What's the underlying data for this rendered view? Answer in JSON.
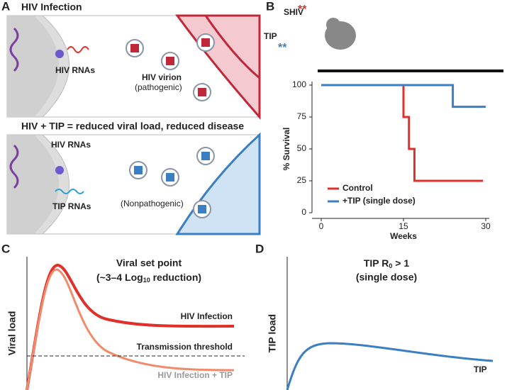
{
  "panels": {
    "a": {
      "label": "A",
      "title_top": "HIV Infection",
      "rnas_top": "HIV RNAs",
      "virion": "HIV virion",
      "pathogenic": "(pathogenic)",
      "title_bottom": "HIV + TIP = reduced viral load, reduced disease",
      "rnas_bottom": "HIV RNAs",
      "tip_rnas": "TIP RNAs",
      "nonpathogenic": "(Nonpathogenic)"
    },
    "b": {
      "label": "B",
      "shiv": "SHIV",
      "shiv_mark": "**",
      "tip": "TIP",
      "tip_mark": "**"
    },
    "c": {
      "label": "C",
      "title1": "Viral set point",
      "title2_pre": "(~3–4 Log",
      "title2_sub": "10",
      "title2_post": " reduction)",
      "ylabel": "Viral load",
      "hiv": "HIV Infection",
      "threshold": "Transmission threshold",
      "hiv_tip": "HIV Infection + TIP"
    },
    "d": {
      "label": "D",
      "title1_pre": "TIP R",
      "title1_sub": "0",
      "title1_post": " > 1",
      "title2": "(single dose)",
      "ylabel": "TIP load",
      "tip": "TIP"
    }
  },
  "chart_data": {
    "type": "line",
    "step": true,
    "xlabel": "Weeks",
    "ylabel": "% Survival",
    "xlim": [
      0,
      30
    ],
    "xticks": [
      0,
      15,
      30
    ],
    "ylim": [
      0,
      100
    ],
    "yticks": [
      0,
      25,
      50,
      75,
      100
    ],
    "series": [
      {
        "name": "Control",
        "color": "#e0302a",
        "x": [
          0,
          15,
          16,
          17,
          29.5
        ],
        "values": [
          100,
          75,
          50,
          25,
          25
        ]
      },
      {
        "name": "+TIP (single dose)",
        "color": "#3a7fc4",
        "x": [
          0,
          24,
          30
        ],
        "values": [
          100,
          83,
          83
        ]
      }
    ]
  }
}
